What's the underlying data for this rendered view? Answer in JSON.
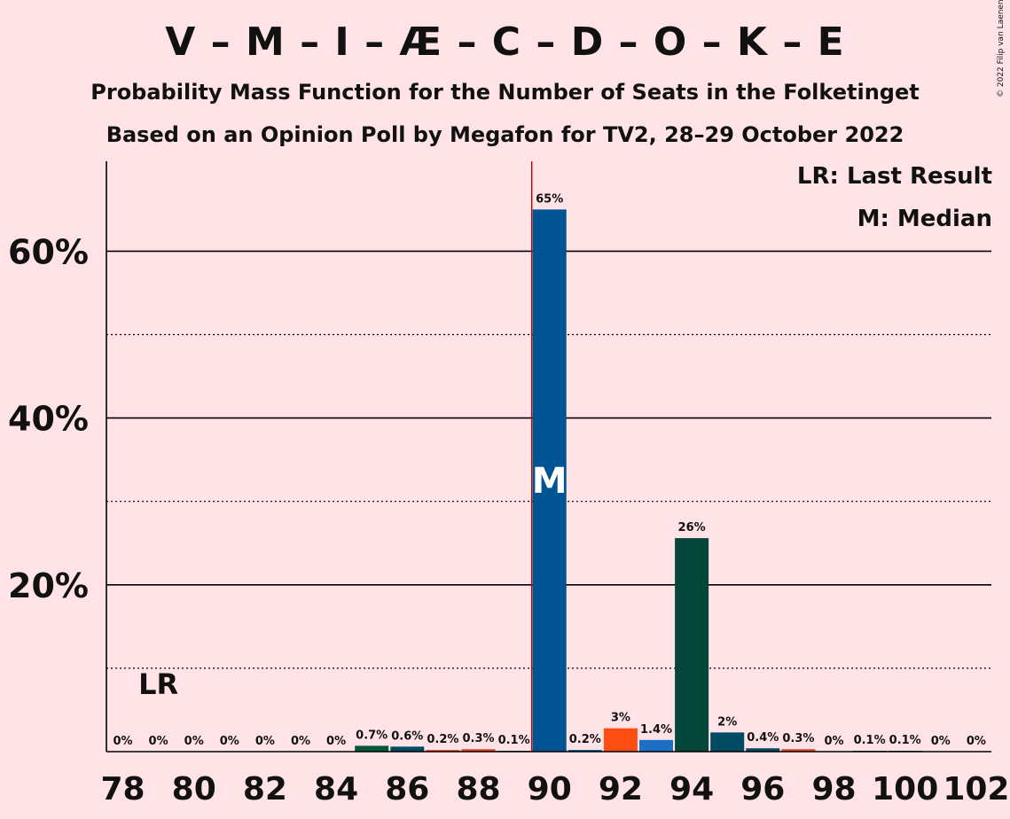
{
  "title": "V – M – I – Æ – C – D – O – K – E",
  "subtitle_1": "Probability Mass Function for the Number of Seats in the Folketinget",
  "subtitle_2": "Based on an Opinion Poll by Megafon for TV2, 28–29 October 2022",
  "copyright": "© 2022 Filip van Laenen",
  "legend": {
    "last_result": "LR: Last Result",
    "median": "M: Median"
  },
  "chart_data": {
    "type": "bar",
    "x": [
      78,
      79,
      80,
      81,
      82,
      83,
      84,
      85,
      86,
      87,
      88,
      89,
      90,
      91,
      92,
      93,
      94,
      95,
      96,
      97,
      98,
      99,
      100,
      101,
      102
    ],
    "values": [
      0,
      0,
      0,
      0,
      0,
      0,
      0,
      0.7,
      0.6,
      0.2,
      0.3,
      0.1,
      65,
      0.2,
      2.8,
      1.4,
      25.6,
      2.3,
      0.4,
      0.3,
      0,
      0.1,
      0.1,
      0,
      0
    ],
    "value_labels": [
      "0%",
      "0%",
      "0%",
      "0%",
      "0%",
      "0%",
      "0%",
      "0.7%",
      "0.6%",
      "0.2%",
      "0.3%",
      "0.1%",
      "65%",
      "0.2%",
      "3%",
      "1.4%",
      "26%",
      "2%",
      "0.4%",
      "0.3%",
      "0%",
      "0.1%",
      "0.1%",
      "0%",
      "0%"
    ],
    "bar_colors": [
      "#00573D",
      "#00573D",
      "#00573D",
      "#00573D",
      "#00573D",
      "#00573D",
      "#00573D",
      "#00573D",
      "#004B63",
      "#E8482B",
      "#E8482B",
      "#00573D",
      "#005494",
      "#005494",
      "#FF4E14",
      "#1B6FC4",
      "#04473A",
      "#004B63",
      "#004B63",
      "#E8482B",
      "#00573D",
      "#00573D",
      "#00573D",
      "#00573D",
      "#00573D"
    ],
    "x_tick_labels": [
      "78",
      "80",
      "82",
      "84",
      "86",
      "88",
      "90",
      "92",
      "94",
      "96",
      "98",
      "100",
      "102"
    ],
    "y_tick_labels": [
      "20%",
      "40%",
      "60%"
    ],
    "ylim": [
      0,
      70
    ],
    "y_major_gridlines": [
      20,
      40,
      60
    ],
    "y_minor_gridlines": [
      10,
      30,
      50
    ],
    "median_seat": 90,
    "median_label": "M",
    "last_result_seat": 79,
    "last_result_label": "LR",
    "median_line_color": "#C00000"
  }
}
